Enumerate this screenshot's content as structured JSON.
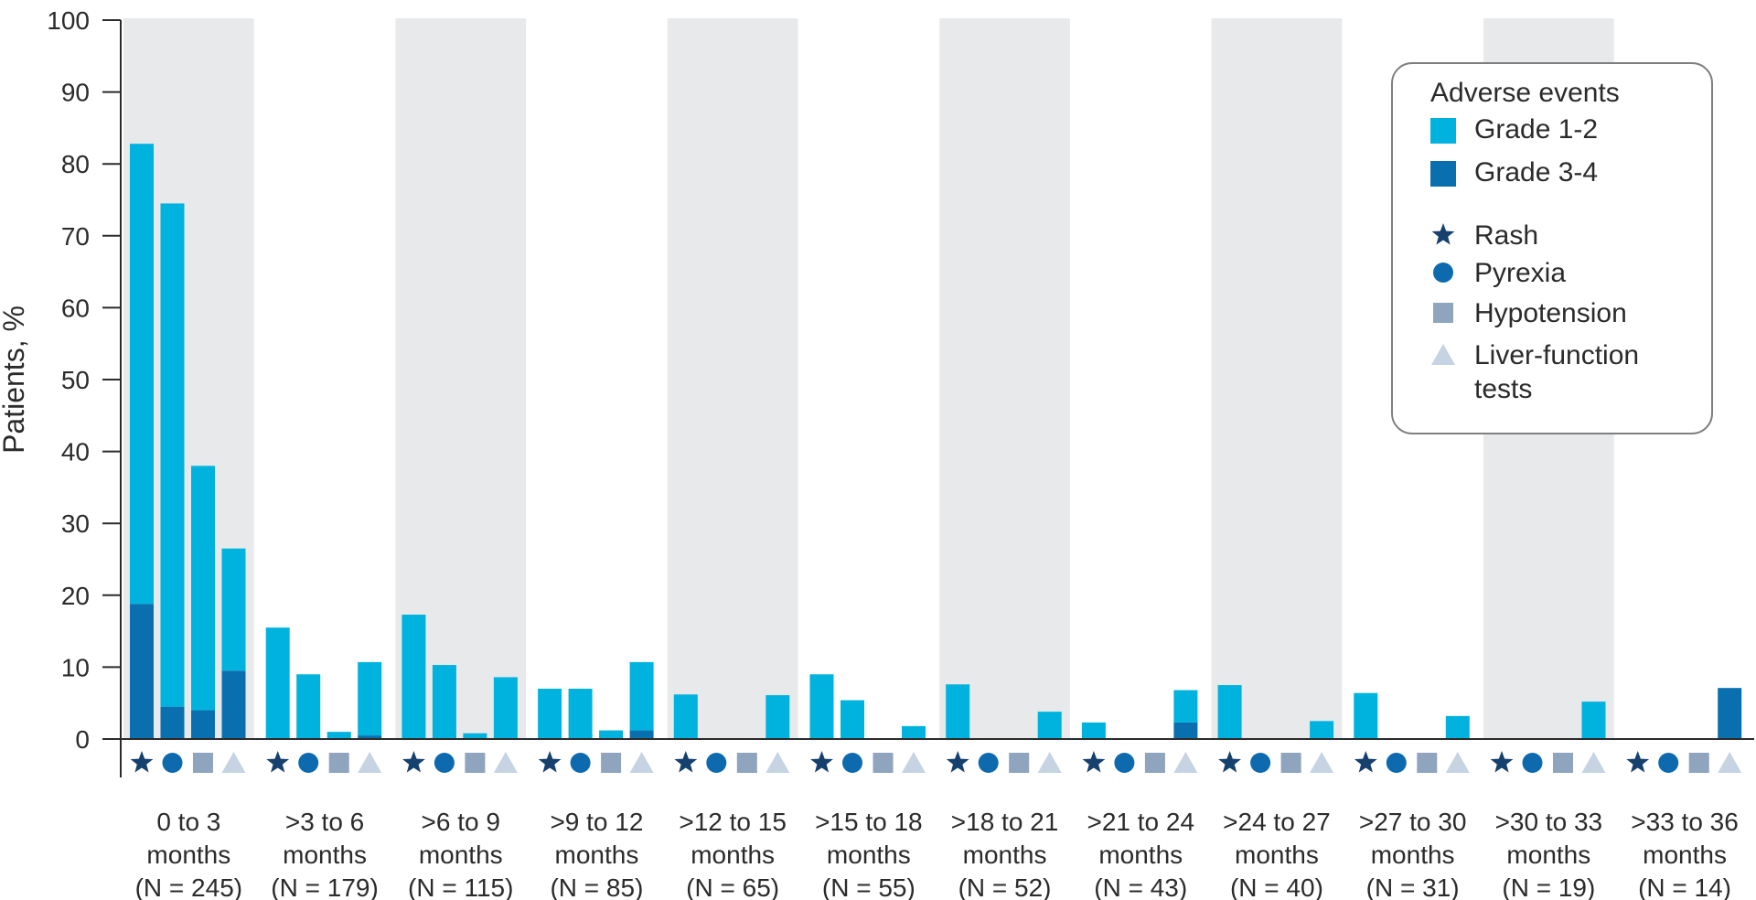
{
  "chart_data": {
    "type": "bar",
    "ylabel": "Patients, %",
    "xlabel": "",
    "ylim": [
      0,
      100
    ],
    "yticks": [
      0,
      10,
      20,
      30,
      40,
      50,
      60,
      70,
      80,
      90,
      100
    ],
    "shaded_alternate_groups": true,
    "categories": [
      [
        "0 to 3",
        "months",
        "(N = 245)"
      ],
      [
        ">3 to 6",
        "months",
        "(N = 179)"
      ],
      [
        ">6 to 9",
        "months",
        "(N = 115)"
      ],
      [
        ">9 to 12",
        "months",
        "(N = 85)"
      ],
      [
        ">12 to 15",
        "months",
        "(N = 65)"
      ],
      [
        ">15 to 18",
        "months",
        "(N = 55)"
      ],
      [
        ">18 to 21",
        "months",
        "(N = 52)"
      ],
      [
        ">21 to 24",
        "months",
        "(N = 43)"
      ],
      [
        ">24 to 27",
        "months",
        "(N = 40)"
      ],
      [
        ">27 to 30",
        "months",
        "(N = 31)"
      ],
      [
        ">30 to 33",
        "months",
        "(N = 19)"
      ],
      [
        ">33 to 36",
        "months",
        "(N = 14)"
      ]
    ],
    "event_types": [
      "Rash",
      "Pyrexia",
      "Hypotension",
      "Liver-function tests"
    ],
    "series": [
      {
        "name": "Grade 1-2",
        "values": [
          [
            64.0,
            70.0,
            34.0,
            17.0
          ],
          [
            15.5,
            9.0,
            1.0,
            10.2
          ],
          [
            17.3,
            10.3,
            0.8,
            8.6
          ],
          [
            7.0,
            7.0,
            1.2,
            9.5
          ],
          [
            6.2,
            0.0,
            0.0,
            6.1
          ],
          [
            9.0,
            5.4,
            0.0,
            1.8
          ],
          [
            7.6,
            0.0,
            0.0,
            3.8
          ],
          [
            2.3,
            0.0,
            0.0,
            4.5
          ],
          [
            7.5,
            0.0,
            0.0,
            2.5
          ],
          [
            6.4,
            0.0,
            0.0,
            3.2
          ],
          [
            0.0,
            0.0,
            0.0,
            5.2
          ],
          [
            0.0,
            0.0,
            0.0,
            0.0
          ]
        ]
      },
      {
        "name": "Grade 3-4",
        "values": [
          [
            18.8,
            4.5,
            4.0,
            9.5
          ],
          [
            0.0,
            0.0,
            0.0,
            0.5
          ],
          [
            0.0,
            0.0,
            0.0,
            0.0
          ],
          [
            0.0,
            0.0,
            0.0,
            1.2
          ],
          [
            0.0,
            0.0,
            0.0,
            0.0
          ],
          [
            0.0,
            0.0,
            0.0,
            0.0
          ],
          [
            0.0,
            0.0,
            0.0,
            0.0
          ],
          [
            0.0,
            0.0,
            0.0,
            2.3
          ],
          [
            0.0,
            0.0,
            0.0,
            0.0
          ],
          [
            0.0,
            0.0,
            0.0,
            0.0
          ],
          [
            0.0,
            0.0,
            0.0,
            0.0
          ],
          [
            0.0,
            0.0,
            0.0,
            7.1
          ]
        ]
      }
    ],
    "legend": {
      "title": "Adverse events",
      "placement": "top-right",
      "grades": [
        {
          "label": "Grade 1-2",
          "color": "#00B2DE"
        },
        {
          "label": "Grade 3-4",
          "color": "#0A6FAF"
        }
      ],
      "events": [
        {
          "label": "Rash",
          "icon": "star-icon",
          "color": "#16406E"
        },
        {
          "label": "Pyrexia",
          "icon": "circle-icon",
          "color": "#0E6AAE"
        },
        {
          "label": "Hypotension",
          "icon": "square-icon",
          "color": "#8FA4BD"
        },
        {
          "label": [
            "Liver-function",
            "tests"
          ],
          "icon": "triangle-icon",
          "color": "#C5D3E3"
        }
      ]
    },
    "colors": {
      "grade12": "#00B2DE",
      "grade34": "#0A6FAF",
      "shade": "#E8E9EA",
      "axis": "#2b2b2b"
    }
  }
}
